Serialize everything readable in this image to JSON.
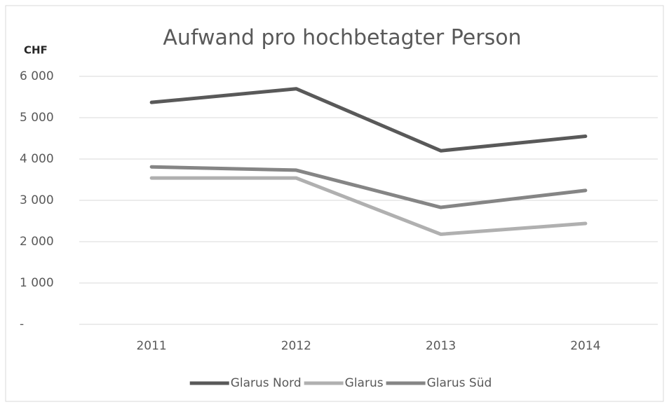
{
  "chart_data": {
    "type": "line",
    "title": "Aufwand pro hochbetagter Person",
    "y_label": "CHF",
    "categories": [
      "2011",
      "2012",
      "2013",
      "2014"
    ],
    "series": [
      {
        "name": "Glarus Nord",
        "color": "#595959",
        "values": [
          5370,
          5700,
          4200,
          4550
        ]
      },
      {
        "name": "Glarus",
        "color": "#b0b0b0",
        "values": [
          3540,
          3540,
          2180,
          2440
        ]
      },
      {
        "name": "Glarus Süd",
        "color": "#858585",
        "values": [
          3810,
          3730,
          2830,
          3240
        ]
      }
    ],
    "ylim": [
      0,
      6000
    ],
    "yticks": [
      {
        "value": 0,
        "label": "-"
      },
      {
        "value": 1000,
        "label": "1 000"
      },
      {
        "value": 2000,
        "label": "2 000"
      },
      {
        "value": 3000,
        "label": "3 000"
      },
      {
        "value": 4000,
        "label": "4 000"
      },
      {
        "value": 5000,
        "label": "5 000"
      },
      {
        "value": 6000,
        "label": "6 000"
      }
    ],
    "grid": true,
    "legend": "bottom"
  }
}
